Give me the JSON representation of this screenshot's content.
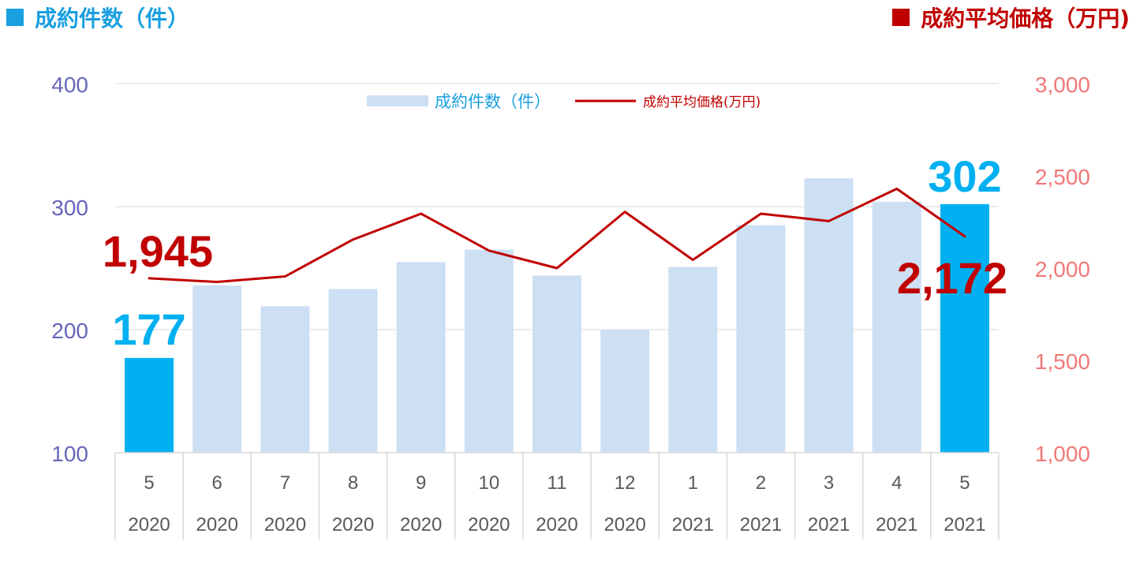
{
  "header": {
    "left_title": "成約件数（件）",
    "right_title": "成約平均価格（万円)"
  },
  "colors": {
    "bar": "#cddff3",
    "bar_highlight": "#00b0f0",
    "line": "#c00000",
    "left_axis": "#6666bb",
    "right_axis": "#f07878",
    "left_title": "#1a9fe0",
    "right_title": "#c00000",
    "grid": "#d9d9d9",
    "x_text": "#595959"
  },
  "chart_data": {
    "type": "bar",
    "categories": [
      [
        "5",
        "2020"
      ],
      [
        "6",
        "2020"
      ],
      [
        "7",
        "2020"
      ],
      [
        "8",
        "2020"
      ],
      [
        "9",
        "2020"
      ],
      [
        "10",
        "2020"
      ],
      [
        "11",
        "2020"
      ],
      [
        "12",
        "2020"
      ],
      [
        "1",
        "2021"
      ],
      [
        "2",
        "2021"
      ],
      [
        "3",
        "2021"
      ],
      [
        "4",
        "2021"
      ],
      [
        "5",
        "2021"
      ]
    ],
    "series": [
      {
        "name": "成約件数（件）",
        "type": "bar",
        "axis": "left",
        "values": [
          177,
          236,
          219,
          233,
          255,
          265,
          244,
          200,
          251,
          285,
          323,
          304,
          302
        ],
        "highlight": [
          0,
          12
        ]
      },
      {
        "name": "成約平均価格(万円)",
        "type": "line",
        "axis": "right",
        "values": [
          1945,
          1925,
          1955,
          2155,
          2295,
          2095,
          2000,
          2305,
          2045,
          2295,
          2255,
          2430,
          2172
        ]
      }
    ],
    "y_left": {
      "ylim": [
        100,
        400
      ],
      "ticks": [
        "100",
        "200",
        "300",
        "400"
      ]
    },
    "y_right": {
      "ylim": [
        1000,
        3000
      ],
      "ticks": [
        "1,000",
        "1,500",
        "2,000",
        "2,500",
        "3,000"
      ]
    },
    "legend": {
      "position": "top-center",
      "bar_label": "成約件数（件）",
      "line_label": "成約平均価格(万円)"
    },
    "annotations": {
      "bar_first": "177",
      "bar_last": "302",
      "line_first": "1,945",
      "line_last": "2,172"
    },
    "grid": true
  }
}
